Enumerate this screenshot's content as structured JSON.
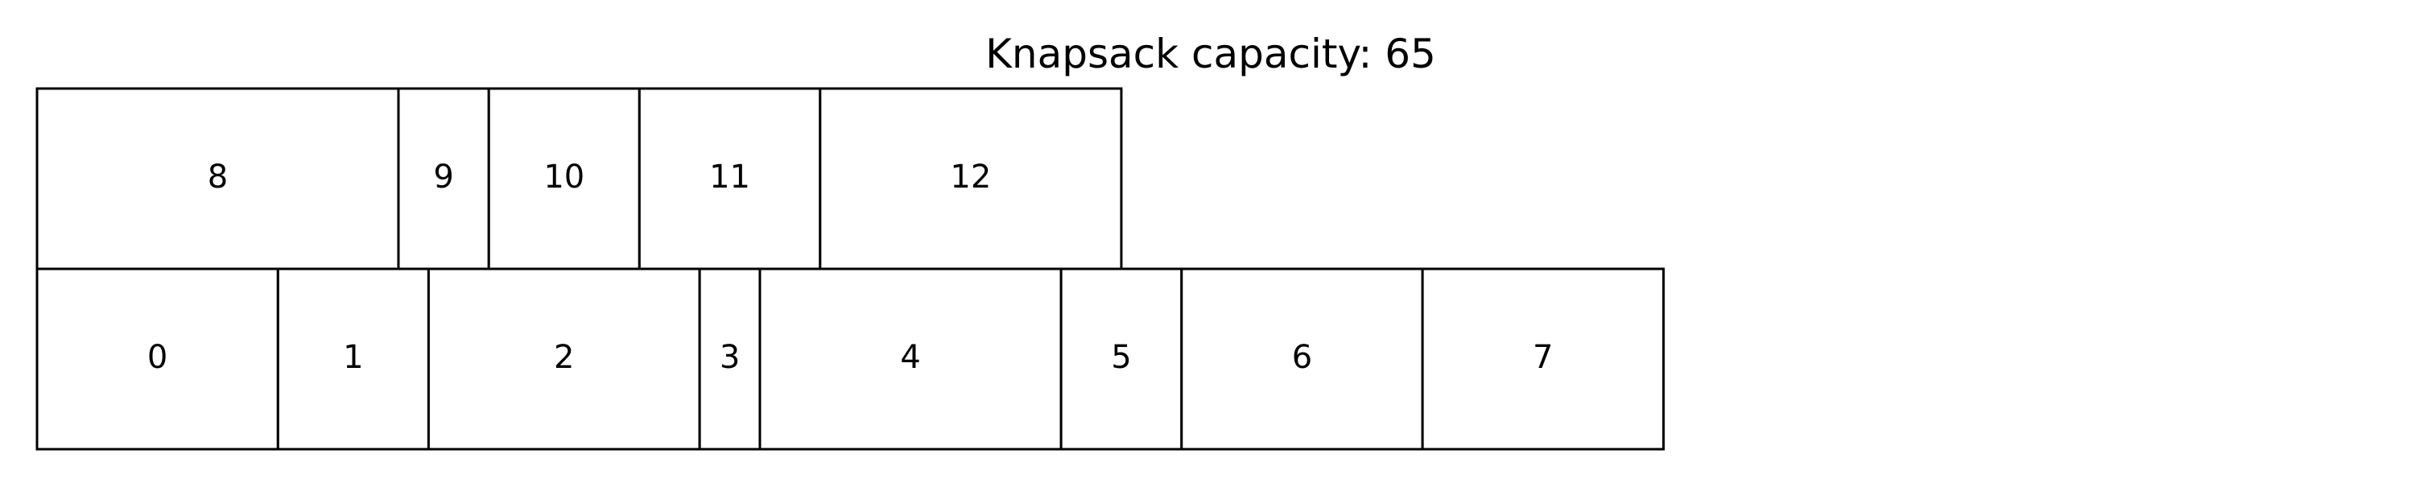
{
  "title": "Knapsack capacity: 65",
  "chart_data": {
    "type": "diagram",
    "title": "Knapsack capacity: 65",
    "capacity": 65,
    "rows": [
      {
        "items": [
          {
            "label": "0",
            "width": 8
          },
          {
            "label": "1",
            "width": 5
          },
          {
            "label": "2",
            "width": 9
          },
          {
            "label": "3",
            "width": 2
          },
          {
            "label": "4",
            "width": 10
          },
          {
            "label": "5",
            "width": 4
          },
          {
            "label": "6",
            "width": 8
          },
          {
            "label": "7",
            "width": 8
          }
        ]
      },
      {
        "items": [
          {
            "label": "8",
            "width": 12
          },
          {
            "label": "9",
            "width": 3
          },
          {
            "label": "10",
            "width": 5
          },
          {
            "label": "11",
            "width": 6
          },
          {
            "label": "12",
            "width": 10
          }
        ]
      }
    ]
  }
}
